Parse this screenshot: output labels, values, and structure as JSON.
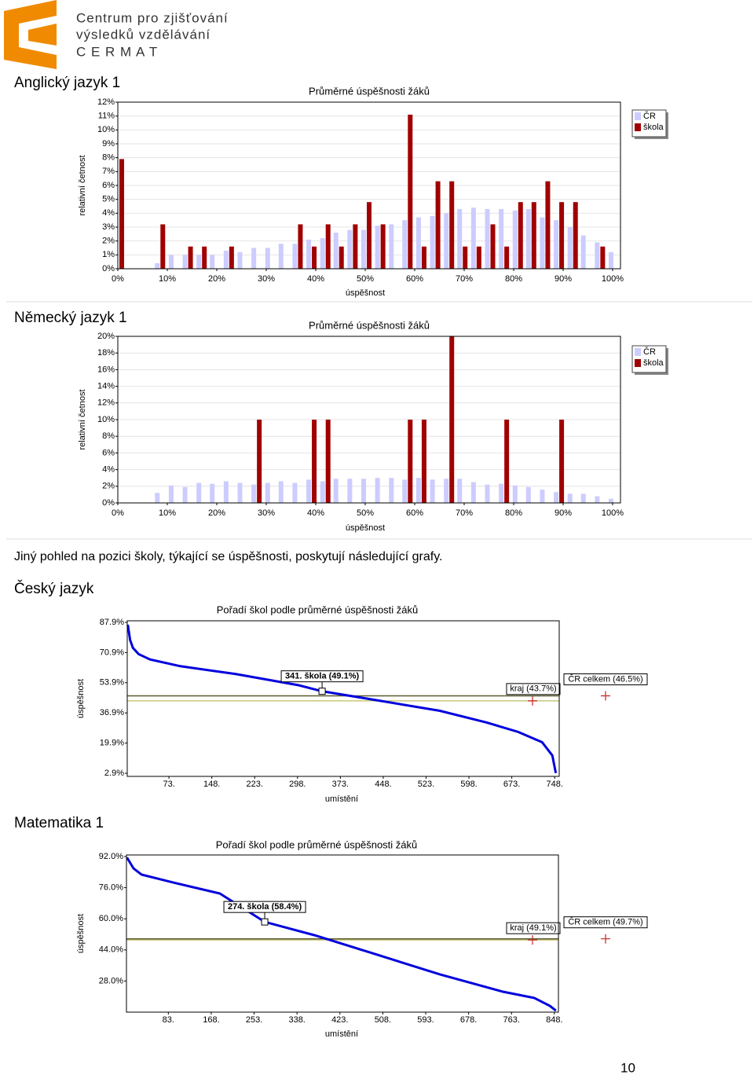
{
  "header": {
    "org_line1": "Centrum pro zjišťování",
    "org_line2": "výsledků vzdělávání",
    "org_line3": "C E R M A T"
  },
  "intro": "Jiný pohled na pozici školy, týkající se úspěšnosti, poskytují následující grafy.",
  "page_number": "10",
  "chart_data": [
    {
      "type": "bar",
      "heading": "Anglický jazyk 1",
      "title": "Průměrné úspěšnosti žáků",
      "xlabel": "úspěšnost",
      "ylabel": "relativní četnost",
      "x": [
        0,
        2.8,
        5.6,
        8.3,
        11.1,
        13.9,
        16.7,
        19.4,
        22.2,
        25,
        27.8,
        30.6,
        33.3,
        36.1,
        38.9,
        41.7,
        44.4,
        47.2,
        50,
        52.8,
        55.6,
        58.3,
        61.1,
        63.9,
        66.7,
        69.4,
        72.2,
        75,
        77.8,
        80.6,
        83.3,
        86.1,
        88.9,
        91.7,
        94.4,
        97.2,
        100
      ],
      "series": [
        {
          "name": "ČR",
          "color": "#ccccff",
          "values": [
            0,
            0,
            0,
            0.4,
            1.0,
            1.0,
            1.0,
            1.0,
            1.3,
            1.2,
            1.5,
            1.5,
            1.8,
            1.8,
            2.1,
            2.2,
            2.6,
            2.8,
            2.8,
            3.1,
            3.2,
            3.5,
            3.7,
            3.8,
            4.0,
            4.3,
            4.4,
            4.3,
            4.3,
            4.2,
            4.3,
            3.7,
            3.5,
            3.0,
            2.4,
            1.9,
            1.2
          ]
        },
        {
          "name": "škola",
          "color": "#a00000",
          "values": [
            7.9,
            0,
            0,
            3.2,
            0,
            1.6,
            1.6,
            0,
            1.6,
            0,
            0,
            0,
            0,
            3.2,
            1.6,
            3.2,
            1.6,
            3.2,
            4.8,
            3.2,
            0,
            11.1,
            1.6,
            6.3,
            6.3,
            1.6,
            1.6,
            3.2,
            1.6,
            4.8,
            4.8,
            6.3,
            4.8,
            4.8,
            0,
            1.6,
            0
          ]
        }
      ],
      "xlim": [
        0,
        100
      ],
      "xticks": [
        {
          "value": 0,
          "label": "0%"
        },
        {
          "value": 10,
          "label": "10%"
        },
        {
          "value": 20,
          "label": "20%"
        },
        {
          "value": 30,
          "label": "30%"
        },
        {
          "value": 40,
          "label": "40%"
        },
        {
          "value": 50,
          "label": "50%"
        },
        {
          "value": 60,
          "label": "60%"
        },
        {
          "value": 70,
          "label": "70%"
        },
        {
          "value": 80,
          "label": "80%"
        },
        {
          "value": 90,
          "label": "90%"
        },
        {
          "value": 100,
          "label": "100%"
        }
      ],
      "ylim": [
        0,
        12
      ],
      "yticks": [
        {
          "value": 0,
          "label": "0%"
        },
        {
          "value": 1,
          "label": "1%"
        },
        {
          "value": 2,
          "label": "2%"
        },
        {
          "value": 3,
          "label": "3%"
        },
        {
          "value": 4,
          "label": "4%"
        },
        {
          "value": 5,
          "label": "5%"
        },
        {
          "value": 6,
          "label": "6%"
        },
        {
          "value": 7,
          "label": "7%"
        },
        {
          "value": 8,
          "label": "8%"
        },
        {
          "value": 9,
          "label": "9%"
        },
        {
          "value": 10,
          "label": "10%"
        },
        {
          "value": 11,
          "label": "11%"
        },
        {
          "value": 12,
          "label": "12%"
        }
      ],
      "grid": true,
      "legend": "right"
    },
    {
      "type": "bar",
      "heading": "Německý jazyk 1",
      "title": "Průměrné úspěšnosti žáků",
      "xlabel": "úspěšnost",
      "ylabel": "relativní četnost",
      "x": [
        0,
        2.8,
        5.6,
        8.3,
        11.1,
        13.9,
        16.7,
        19.4,
        22.2,
        25,
        27.8,
        30.6,
        33.3,
        36.1,
        38.9,
        41.7,
        44.4,
        47.2,
        50,
        52.8,
        55.6,
        58.3,
        61.1,
        63.9,
        66.7,
        69.4,
        72.2,
        75,
        77.8,
        80.6,
        83.3,
        86.1,
        88.9,
        91.7,
        94.4,
        97.2,
        100
      ],
      "series": [
        {
          "name": "ČR",
          "color": "#ccccff",
          "values": [
            0,
            0,
            0,
            1.2,
            2.1,
            1.9,
            2.4,
            2.3,
            2.6,
            2.4,
            2.2,
            2.4,
            2.6,
            2.4,
            2.8,
            2.6,
            2.9,
            2.9,
            2.9,
            3.0,
            3.0,
            2.8,
            3.0,
            2.8,
            2.9,
            2.9,
            2.5,
            2.2,
            2.3,
            2.1,
            1.9,
            1.6,
            1.3,
            1.1,
            1.1,
            0.8,
            0.5
          ]
        },
        {
          "name": "škola",
          "color": "#a00000",
          "values": [
            0,
            0,
            0,
            0,
            0,
            0,
            0,
            0,
            0,
            0,
            10,
            0,
            0,
            0,
            10,
            10,
            0,
            0,
            0,
            0,
            0,
            10,
            10,
            0,
            20,
            0,
            0,
            0,
            10,
            0,
            0,
            0,
            10,
            0,
            0,
            0,
            0
          ]
        }
      ],
      "xlim": [
        0,
        100
      ],
      "xticks": [
        {
          "value": 0,
          "label": "0%"
        },
        {
          "value": 10,
          "label": "10%"
        },
        {
          "value": 20,
          "label": "20%"
        },
        {
          "value": 30,
          "label": "30%"
        },
        {
          "value": 40,
          "label": "40%"
        },
        {
          "value": 50,
          "label": "50%"
        },
        {
          "value": 60,
          "label": "60%"
        },
        {
          "value": 70,
          "label": "70%"
        },
        {
          "value": 80,
          "label": "80%"
        },
        {
          "value": 90,
          "label": "90%"
        },
        {
          "value": 100,
          "label": "100%"
        }
      ],
      "ylim": [
        0,
        20
      ],
      "yticks": [
        {
          "value": 0,
          "label": "0%"
        },
        {
          "value": 2,
          "label": "2%"
        },
        {
          "value": 4,
          "label": "4%"
        },
        {
          "value": 6,
          "label": "6%"
        },
        {
          "value": 8,
          "label": "8%"
        },
        {
          "value": 10,
          "label": "10%"
        },
        {
          "value": 12,
          "label": "12%"
        },
        {
          "value": 14,
          "label": "14%"
        },
        {
          "value": 16,
          "label": "16%"
        },
        {
          "value": 18,
          "label": "18%"
        },
        {
          "value": 20,
          "label": "20%"
        }
      ],
      "grid": true,
      "legend": "right"
    },
    {
      "type": "line",
      "heading": "Český jazyk",
      "title": "Pořadí škol podle průměrné úspěšnosti žáků",
      "xlabel": "umístění",
      "ylabel": "úspěšnost",
      "x": [
        1,
        5,
        10,
        20,
        40,
        93,
        190,
        300,
        341,
        437,
        547,
        629,
        684,
        726,
        744,
        750
      ],
      "values": [
        86.6,
        78,
        73.5,
        70,
        67,
        63.2,
        58.8,
        52.5,
        49.1,
        44.0,
        38.1,
        31.5,
        26.2,
        20.4,
        12.9,
        3.0
      ],
      "color": "#0000dd",
      "school": {
        "x": 341,
        "value": 49.1,
        "label": "341. škola (49.1%)"
      },
      "reference_lines": [
        {
          "label": "kraj (43.7%)",
          "value": 43.7,
          "color": "#c8c87a"
        },
        {
          "label": "ČR celkem (46.5%)",
          "value": 46.5,
          "color": "#5c5c30"
        }
      ],
      "xlim": [
        0,
        756
      ],
      "xticks": [
        {
          "value": 73,
          "label": "73."
        },
        {
          "value": 148,
          "label": "148."
        },
        {
          "value": 223,
          "label": "223."
        },
        {
          "value": 298,
          "label": "298."
        },
        {
          "value": 373,
          "label": "373."
        },
        {
          "value": 448,
          "label": "448."
        },
        {
          "value": 523,
          "label": "523."
        },
        {
          "value": 598,
          "label": "598."
        },
        {
          "value": 673,
          "label": "673."
        },
        {
          "value": 748,
          "label": "748."
        }
      ],
      "ylim": [
        2.9,
        87.9
      ],
      "yticks": [
        {
          "value": 87.9,
          "label": "87.9%"
        },
        {
          "value": 70.9,
          "label": "70.9%"
        },
        {
          "value": 53.9,
          "label": "53.9%"
        },
        {
          "value": 36.9,
          "label": "36.9%"
        },
        {
          "value": 19.9,
          "label": "19.9%"
        },
        {
          "value": 2.9,
          "label": "2.9%"
        }
      ]
    },
    {
      "type": "line",
      "heading": "Matematika 1",
      "title": "Pořadí škol podle průměrné úspěšnosti žáků",
      "xlabel": "umístění",
      "ylabel": "úspěšnost",
      "x": [
        1,
        14,
        30,
        92,
        185,
        274,
        372,
        497,
        621,
        746,
        808,
        839,
        851
      ],
      "values": [
        91.5,
        85.9,
        82.7,
        78.7,
        73.0,
        58.4,
        51.6,
        41.5,
        31.4,
        22.5,
        19.3,
        15.2,
        12.8
      ],
      "color": "#0000dd",
      "school": {
        "x": 274,
        "value": 58.4,
        "label": "274. škola (58.4%)"
      },
      "reference_lines": [
        {
          "label": "kraj (49.1%)",
          "value": 49.1,
          "color": "#c8c87a"
        },
        {
          "label": "ČR celkem (49.7%)",
          "value": 49.7,
          "color": "#5c5c30"
        }
      ],
      "xlim": [
        0,
        856
      ],
      "xticks": [
        {
          "value": 83,
          "label": "83."
        },
        {
          "value": 168,
          "label": "168."
        },
        {
          "value": 253,
          "label": "253."
        },
        {
          "value": 338,
          "label": "338."
        },
        {
          "value": 423,
          "label": "423."
        },
        {
          "value": 508,
          "label": "508."
        },
        {
          "value": 593,
          "label": "593."
        },
        {
          "value": 678,
          "label": "678."
        },
        {
          "value": 763,
          "label": "763."
        },
        {
          "value": 848,
          "label": "848."
        }
      ],
      "ylim": [
        12,
        92
      ],
      "yticks": [
        {
          "value": 92,
          "label": "92.0%"
        },
        {
          "value": 76,
          "label": "76.0%"
        },
        {
          "value": 60,
          "label": "60.0%"
        },
        {
          "value": 44,
          "label": "44.0%"
        },
        {
          "value": 28,
          "label": "28.0%"
        }
      ]
    }
  ]
}
